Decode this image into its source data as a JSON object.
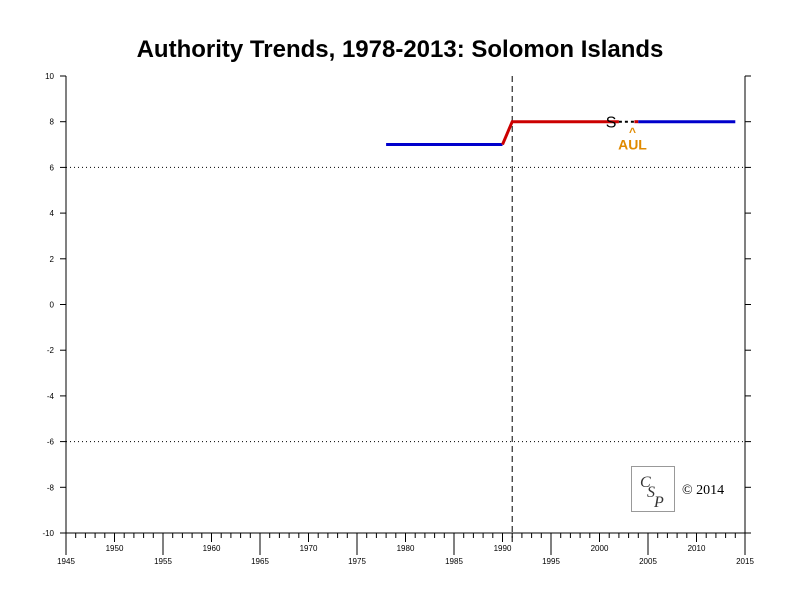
{
  "chart_data": {
    "type": "line",
    "title": "Authority Trends, 1978-2013: Solomon Islands",
    "xlim": [
      1945,
      2015
    ],
    "ylim": [
      -10,
      10
    ],
    "x_major_ticks": [
      1945,
      1955,
      1965,
      1975,
      1985,
      1995,
      2005,
      2015
    ],
    "x_minor_labeled_ticks": [
      1950,
      1960,
      1970,
      1980,
      1990,
      2000,
      2010
    ],
    "y_ticks": [
      10,
      8,
      6,
      4,
      2,
      0,
      -2,
      -4,
      -6,
      -8,
      -10
    ],
    "reference_lines": {
      "dotted_y": [
        6,
        -6
      ],
      "dashed_x": 1991
    },
    "series": [
      {
        "color": "#0000cc",
        "points": [
          [
            1978,
            7
          ],
          [
            1990,
            7
          ]
        ]
      },
      {
        "color": "#cc0000",
        "points": [
          [
            1990,
            7
          ],
          [
            1991,
            8
          ],
          [
            2002,
            8
          ]
        ]
      },
      {
        "color": "#000000",
        "dashed": true,
        "points": [
          [
            2002,
            8
          ],
          [
            2003.6,
            8
          ]
        ]
      },
      {
        "color": "#cc0000",
        "points": [
          [
            2003.6,
            8
          ],
          [
            2004,
            8
          ]
        ]
      },
      {
        "color": "#0000cc",
        "points": [
          [
            2004,
            8
          ],
          [
            2014,
            8
          ]
        ]
      }
    ],
    "annotations": [
      {
        "text": "S",
        "x": 2001.2,
        "y": 8,
        "color": "#000000"
      },
      {
        "text": "^",
        "x": 2003.4,
        "y": 7.6,
        "color": "#e08a00"
      },
      {
        "text": "AUL",
        "x": 2003.4,
        "y": 7.0,
        "color": "#e08a00"
      }
    ]
  },
  "watermark": {
    "logo_text": "CSP",
    "copyright": "© 2014"
  }
}
